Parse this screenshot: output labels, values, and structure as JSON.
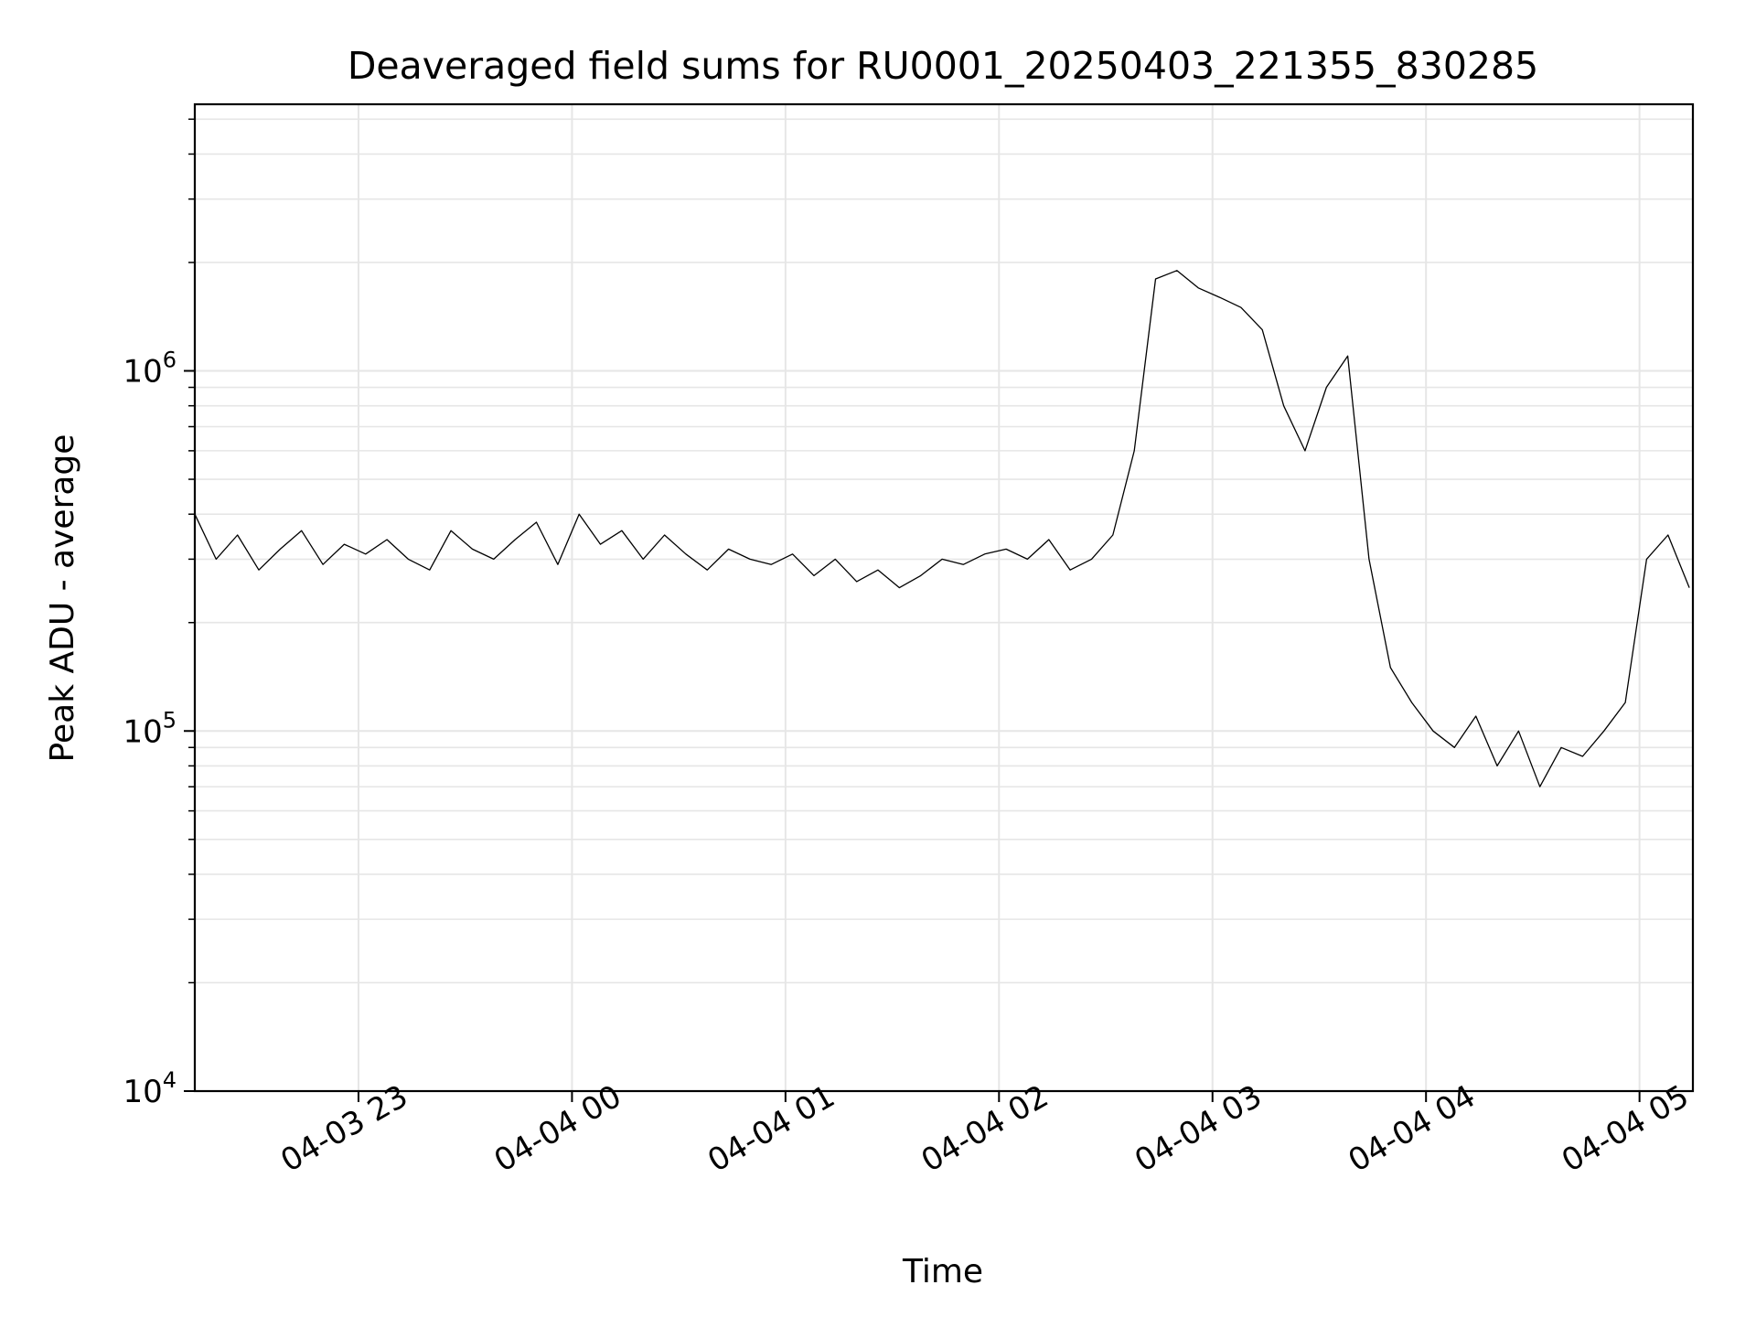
{
  "chart_data": {
    "type": "line",
    "title": "Deaveraged field sums for RU0001_20250403_221355_830285",
    "xlabel": "Time",
    "ylabel": "Peak ADU - average",
    "yscale": "log",
    "ylim": [
      10000,
      5500000
    ],
    "xlim": [
      "2025-04-03 22:14",
      "2025-04-04 05:15"
    ],
    "grid": true,
    "line_color": "#000000",
    "grid_color": "#e6e6e6",
    "x_ticks": [
      {
        "t": "2025-04-03 23:00",
        "label": "04-03 23"
      },
      {
        "t": "2025-04-04 00:00",
        "label": "04-04 00"
      },
      {
        "t": "2025-04-04 01:00",
        "label": "04-04 01"
      },
      {
        "t": "2025-04-04 02:00",
        "label": "04-04 02"
      },
      {
        "t": "2025-04-04 03:00",
        "label": "04-04 03"
      },
      {
        "t": "2025-04-04 04:00",
        "label": "04-04 04"
      },
      {
        "t": "2025-04-04 05:00",
        "label": "04-04 05"
      }
    ],
    "y_ticks": [
      {
        "value": 10000,
        "base": "10",
        "exp": "4"
      },
      {
        "value": 100000,
        "base": "10",
        "exp": "5"
      },
      {
        "value": 1000000,
        "base": "10",
        "exp": "6"
      }
    ],
    "series": [
      {
        "x": [
          "2025-04-03 22:14",
          "2025-04-03 22:20",
          "2025-04-03 22:26",
          "2025-04-03 22:32",
          "2025-04-03 22:38",
          "2025-04-03 22:44",
          "2025-04-03 22:50",
          "2025-04-03 22:56",
          "2025-04-03 23:02",
          "2025-04-03 23:08",
          "2025-04-03 23:14",
          "2025-04-03 23:20",
          "2025-04-03 23:26",
          "2025-04-03 23:32",
          "2025-04-03 23:38",
          "2025-04-03 23:44",
          "2025-04-03 23:50",
          "2025-04-03 23:56",
          "2025-04-04 00:02",
          "2025-04-04 00:08",
          "2025-04-04 00:14",
          "2025-04-04 00:20",
          "2025-04-04 00:26",
          "2025-04-04 00:32",
          "2025-04-04 00:38",
          "2025-04-04 00:44",
          "2025-04-04 00:50",
          "2025-04-04 00:56",
          "2025-04-04 01:02",
          "2025-04-04 01:08",
          "2025-04-04 01:14",
          "2025-04-04 01:20",
          "2025-04-04 01:26",
          "2025-04-04 01:32",
          "2025-04-04 01:38",
          "2025-04-04 01:44",
          "2025-04-04 01:50",
          "2025-04-04 01:56",
          "2025-04-04 02:02",
          "2025-04-04 02:08",
          "2025-04-04 02:14",
          "2025-04-04 02:20",
          "2025-04-04 02:26",
          "2025-04-04 02:32",
          "2025-04-04 02:38",
          "2025-04-04 02:44",
          "2025-04-04 02:50",
          "2025-04-04 02:56",
          "2025-04-04 03:02",
          "2025-04-04 03:08",
          "2025-04-04 03:14",
          "2025-04-04 03:20",
          "2025-04-04 03:26",
          "2025-04-04 03:32",
          "2025-04-04 03:38",
          "2025-04-04 03:44",
          "2025-04-04 03:50",
          "2025-04-04 03:56",
          "2025-04-04 04:02",
          "2025-04-04 04:08",
          "2025-04-04 04:14",
          "2025-04-04 04:20",
          "2025-04-04 04:26",
          "2025-04-04 04:32",
          "2025-04-04 04:38",
          "2025-04-04 04:44",
          "2025-04-04 04:50",
          "2025-04-04 04:56",
          "2025-04-04 05:02",
          "2025-04-04 05:08",
          "2025-04-04 05:14"
        ],
        "y": [
          400000,
          300000,
          350000,
          280000,
          320000,
          360000,
          290000,
          330000,
          310000,
          340000,
          300000,
          280000,
          360000,
          320000,
          300000,
          340000,
          380000,
          290000,
          400000,
          330000,
          360000,
          300000,
          350000,
          310000,
          280000,
          320000,
          300000,
          290000,
          310000,
          270000,
          300000,
          260000,
          280000,
          250000,
          270000,
          300000,
          290000,
          310000,
          320000,
          300000,
          340000,
          280000,
          300000,
          350000,
          600000,
          1800000,
          1900000,
          1700000,
          1600000,
          1500000,
          1300000,
          800000,
          600000,
          900000,
          1100000,
          300000,
          150000,
          120000,
          100000,
          90000,
          110000,
          80000,
          100000,
          70000,
          90000,
          85000,
          100000,
          120000,
          300000,
          350000,
          250000
        ]
      }
    ]
  }
}
